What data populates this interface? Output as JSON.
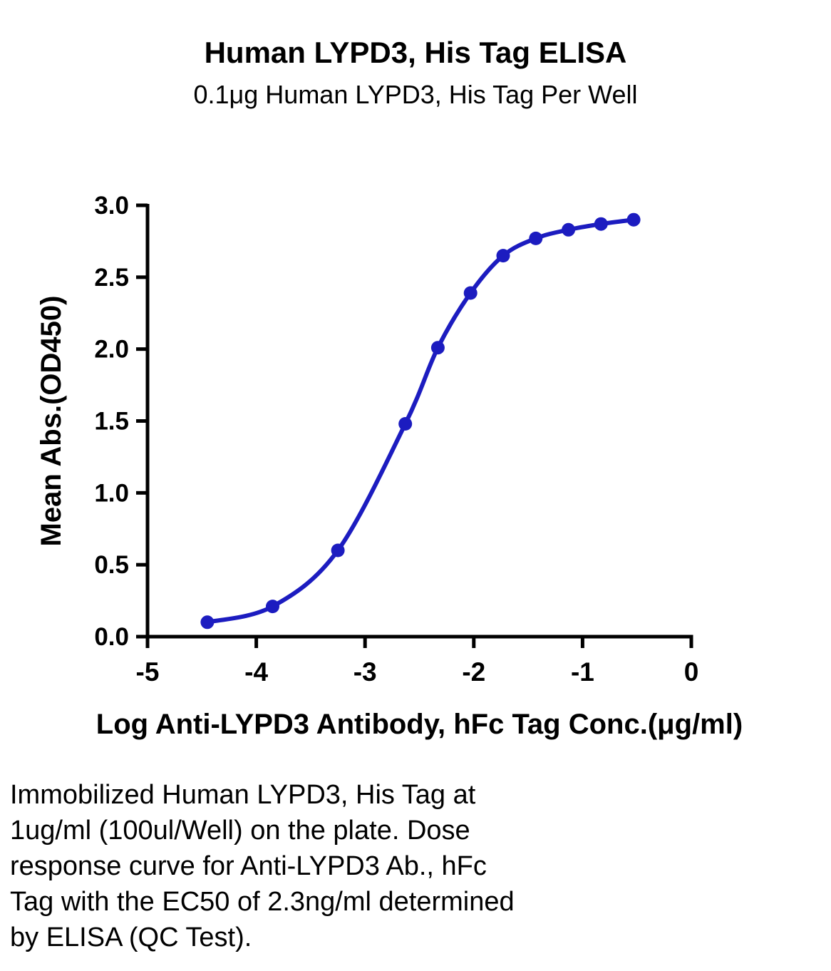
{
  "chart_data": {
    "type": "line",
    "title": "Human LYPD3, His Tag ELISA",
    "subtitle": "0.1μg Human LYPD3, His Tag Per Well",
    "xlabel": "Log Anti-LYPD3 Antibody, hFc Tag Conc.(μg/ml)",
    "ylabel": "Mean Abs.(OD450)",
    "xlim": [
      -5,
      0
    ],
    "ylim": [
      0,
      3
    ],
    "x_ticks": [
      -5,
      -4,
      -3,
      -2,
      -1,
      0
    ],
    "x_tick_labels": [
      "-5",
      "-4",
      "-3",
      "-2",
      "-1",
      "0"
    ],
    "y_ticks": [
      0,
      0.5,
      1,
      1.5,
      2,
      2.5,
      3
    ],
    "y_tick_labels": [
      "0.0",
      "0.5",
      "1.0",
      "1.5",
      "2.0",
      "2.5",
      "3.0"
    ],
    "grid": false,
    "legend": false,
    "series": [
      {
        "name": "Anti-LYPD3 Antibody, hFc Tag",
        "color": "#1c1cc0",
        "x": [
          -4.45,
          -3.85,
          -3.25,
          -2.63,
          -2.33,
          -2.03,
          -1.73,
          -1.43,
          -1.13,
          -0.83,
          -0.53
        ],
        "y": [
          0.1,
          0.21,
          0.6,
          1.48,
          2.01,
          2.39,
          2.65,
          2.77,
          2.83,
          2.87,
          2.9
        ]
      }
    ]
  },
  "caption": {
    "lines": [
      "Immobilized Human LYPD3, His Tag at",
      "1ug/ml (100ul/Well) on the plate. Dose",
      "response curve for Anti-LYPD3 Ab., hFc",
      "Tag with the EC50 of 2.3ng/ml determined",
      "by ELISA (QC Test)."
    ]
  }
}
